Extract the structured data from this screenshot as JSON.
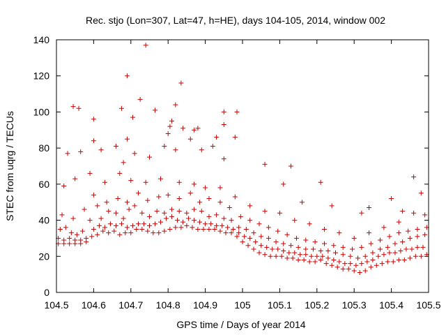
{
  "chart_data": {
    "type": "scatter",
    "title": "Rec. stjo (Lon=307, Lat=47, h=HE), days 104-105, 2014, window 002",
    "xlabel": "GPS time / Days of year 2014",
    "ylabel": "STEC from uqrg / TECUs",
    "xlim": [
      104.5,
      105.5
    ],
    "ylim": [
      0,
      140
    ],
    "xticks": [
      104.5,
      104.6,
      104.7,
      104.8,
      104.9,
      105,
      105.1,
      105.2,
      105.3,
      105.4,
      105.5
    ],
    "xtick_labels": [
      "104.5",
      "104.6",
      "104.7",
      "104.8",
      "104.9",
      "105",
      "105.1",
      "105.2",
      "105.3",
      "105.4",
      "105.5"
    ],
    "yticks": [
      0,
      20,
      40,
      60,
      80,
      100,
      120,
      140
    ],
    "ytick_labels": [
      "0",
      "20",
      "40",
      "60",
      "80",
      "100",
      "120",
      "140"
    ],
    "grid": false,
    "legend": "none",
    "marker": "plus",
    "color": "#cc0000",
    "series": [
      {
        "points": [
          [
            104.505,
            27
          ],
          [
            104.52,
            27
          ],
          [
            104.535,
            27
          ],
          [
            104.55,
            27
          ],
          [
            104.565,
            27
          ],
          [
            104.58,
            28
          ],
          [
            104.595,
            31
          ],
          [
            104.61,
            32
          ],
          [
            104.625,
            34
          ],
          [
            104.64,
            33
          ],
          [
            104.655,
            34
          ],
          [
            104.67,
            32
          ],
          [
            104.685,
            33
          ],
          [
            104.7,
            33
          ],
          [
            104.715,
            35
          ],
          [
            104.73,
            35
          ],
          [
            104.745,
            34
          ],
          [
            104.76,
            33
          ],
          [
            104.775,
            33
          ],
          [
            104.79,
            34
          ],
          [
            104.805,
            35
          ],
          [
            104.82,
            36
          ],
          [
            104.835,
            36
          ],
          [
            104.85,
            37
          ],
          [
            104.865,
            36
          ],
          [
            104.88,
            35
          ],
          [
            104.895,
            35
          ],
          [
            104.91,
            35
          ],
          [
            104.925,
            35
          ],
          [
            104.94,
            34
          ],
          [
            104.955,
            33
          ],
          [
            104.97,
            33
          ],
          [
            104.985,
            31
          ],
          [
            105.0,
            28
          ],
          [
            105.015,
            26
          ],
          [
            105.03,
            24
          ],
          [
            105.045,
            22
          ],
          [
            105.06,
            21
          ],
          [
            105.075,
            20
          ],
          [
            105.09,
            20
          ],
          [
            105.105,
            20
          ],
          [
            105.12,
            19
          ],
          [
            105.135,
            19
          ],
          [
            105.15,
            18
          ],
          [
            105.165,
            18
          ],
          [
            105.18,
            17
          ],
          [
            105.195,
            17
          ],
          [
            105.21,
            18
          ],
          [
            105.225,
            16
          ],
          [
            105.24,
            15
          ],
          [
            105.255,
            14
          ],
          [
            105.27,
            13
          ],
          [
            105.285,
            13
          ],
          [
            105.3,
            12
          ],
          [
            105.315,
            11
          ],
          [
            105.33,
            12
          ],
          [
            105.345,
            14
          ],
          [
            105.36,
            15
          ],
          [
            105.375,
            16
          ],
          [
            105.39,
            17
          ],
          [
            105.405,
            17
          ],
          [
            105.42,
            18
          ],
          [
            105.435,
            18
          ],
          [
            105.45,
            19
          ],
          [
            105.465,
            20
          ],
          [
            105.48,
            20
          ],
          [
            105.495,
            21
          ],
          [
            104.505,
            30
          ],
          [
            104.52,
            29
          ],
          [
            104.535,
            30
          ],
          [
            104.55,
            29
          ],
          [
            104.565,
            29
          ],
          [
            104.58,
            30
          ],
          [
            104.6,
            35
          ],
          [
            104.615,
            37
          ],
          [
            104.63,
            36
          ],
          [
            104.645,
            38
          ],
          [
            104.66,
            37
          ],
          [
            104.675,
            38
          ],
          [
            104.69,
            36
          ],
          [
            104.705,
            37
          ],
          [
            104.72,
            38
          ],
          [
            104.735,
            38
          ],
          [
            104.75,
            37
          ],
          [
            104.765,
            38
          ],
          [
            104.78,
            39
          ],
          [
            104.795,
            41
          ],
          [
            104.81,
            42
          ],
          [
            104.825,
            40
          ],
          [
            104.84,
            39
          ],
          [
            104.855,
            41
          ],
          [
            104.87,
            40
          ],
          [
            104.885,
            39
          ],
          [
            104.9,
            38
          ],
          [
            104.915,
            38
          ],
          [
            104.93,
            37
          ],
          [
            104.945,
            37
          ],
          [
            104.96,
            36
          ],
          [
            104.975,
            35
          ],
          [
            104.99,
            33
          ],
          [
            105.005,
            31
          ],
          [
            105.02,
            30
          ],
          [
            105.035,
            28
          ],
          [
            105.05,
            26
          ],
          [
            105.065,
            25
          ],
          [
            105.08,
            24
          ],
          [
            105.095,
            24
          ],
          [
            105.11,
            23
          ],
          [
            105.125,
            22
          ],
          [
            105.14,
            22
          ],
          [
            105.155,
            21
          ],
          [
            105.17,
            21
          ],
          [
            105.185,
            20
          ],
          [
            105.2,
            20
          ],
          [
            105.215,
            20
          ],
          [
            105.23,
            19
          ],
          [
            105.245,
            18
          ],
          [
            105.26,
            17
          ],
          [
            105.275,
            16
          ],
          [
            105.29,
            16
          ],
          [
            105.305,
            15
          ],
          [
            105.32,
            16
          ],
          [
            105.335,
            17
          ],
          [
            105.35,
            18
          ],
          [
            105.365,
            20
          ],
          [
            105.38,
            21
          ],
          [
            105.395,
            22
          ],
          [
            105.41,
            22
          ],
          [
            105.425,
            23
          ],
          [
            105.44,
            24
          ],
          [
            105.455,
            24
          ],
          [
            105.47,
            25
          ],
          [
            105.485,
            25
          ],
          [
            104.51,
            35
          ],
          [
            104.525,
            36
          ],
          [
            104.54,
            33
          ],
          [
            104.555,
            32
          ],
          [
            104.57,
            34
          ],
          [
            104.59,
            40
          ],
          [
            104.62,
            41
          ],
          [
            104.64,
            45
          ],
          [
            104.66,
            44
          ],
          [
            104.68,
            41
          ],
          [
            104.695,
            46
          ],
          [
            104.71,
            48
          ],
          [
            104.73,
            44
          ],
          [
            104.75,
            42
          ],
          [
            104.77,
            45
          ],
          [
            104.79,
            44
          ],
          [
            104.81,
            46
          ],
          [
            104.83,
            45
          ],
          [
            104.85,
            44
          ],
          [
            104.87,
            46
          ],
          [
            104.89,
            45
          ],
          [
            104.91,
            42
          ],
          [
            104.93,
            43
          ],
          [
            104.95,
            41
          ],
          [
            104.97,
            40
          ],
          [
            104.99,
            36
          ],
          [
            105.01,
            35
          ],
          [
            105.03,
            33
          ],
          [
            105.05,
            31
          ],
          [
            105.07,
            30
          ],
          [
            105.09,
            28
          ],
          [
            105.11,
            27
          ],
          [
            105.13,
            26
          ],
          [
            105.15,
            25
          ],
          [
            105.17,
            24
          ],
          [
            105.19,
            24
          ],
          [
            105.21,
            23
          ],
          [
            105.23,
            23
          ],
          [
            105.25,
            22
          ],
          [
            105.27,
            21
          ],
          [
            105.29,
            20
          ],
          [
            105.31,
            19
          ],
          [
            105.33,
            20
          ],
          [
            105.35,
            22
          ],
          [
            105.37,
            24
          ],
          [
            105.39,
            25
          ],
          [
            105.41,
            27
          ],
          [
            105.43,
            28
          ],
          [
            105.45,
            30
          ],
          [
            105.47,
            31
          ],
          [
            105.49,
            32
          ],
          [
            104.515,
            43
          ],
          [
            104.545,
            41
          ],
          [
            104.575,
            46
          ],
          [
            104.61,
            48
          ],
          [
            104.635,
            50
          ],
          [
            104.665,
            52
          ],
          [
            104.69,
            50
          ],
          [
            104.72,
            55
          ],
          [
            104.745,
            51
          ],
          [
            104.775,
            53
          ],
          [
            104.8,
            54
          ],
          [
            104.83,
            52
          ],
          [
            104.86,
            55
          ],
          [
            104.885,
            50
          ],
          [
            104.91,
            52
          ],
          [
            104.94,
            50
          ],
          [
            104.965,
            47
          ],
          [
            104.995,
            42
          ],
          [
            105.02,
            40
          ],
          [
            105.045,
            38
          ],
          [
            105.07,
            36
          ],
          [
            105.095,
            34
          ],
          [
            105.12,
            32
          ],
          [
            105.145,
            30
          ],
          [
            105.17,
            29
          ],
          [
            105.195,
            28
          ],
          [
            105.22,
            27
          ],
          [
            105.245,
            26
          ],
          [
            105.27,
            25
          ],
          [
            105.295,
            24
          ],
          [
            105.32,
            25
          ],
          [
            105.345,
            27
          ],
          [
            105.37,
            29
          ],
          [
            105.395,
            31
          ],
          [
            105.42,
            33
          ],
          [
            105.445,
            34
          ],
          [
            105.47,
            35
          ],
          [
            105.495,
            36
          ],
          [
            104.52,
            59
          ],
          [
            104.55,
            63
          ],
          [
            104.6,
            54
          ],
          [
            104.63,
            61
          ],
          [
            104.67,
            66
          ],
          [
            104.7,
            62
          ],
          [
            104.74,
            61
          ],
          [
            104.78,
            63
          ],
          [
            104.83,
            61
          ],
          [
            104.87,
            60
          ],
          [
            104.9,
            58
          ],
          [
            104.94,
            58
          ],
          [
            104.98,
            53
          ],
          [
            105.02,
            48
          ],
          [
            105.06,
            45
          ],
          [
            105.1,
            44
          ],
          [
            105.14,
            40
          ],
          [
            105.18,
            38
          ],
          [
            105.22,
            35
          ],
          [
            105.26,
            33
          ],
          [
            105.3,
            30
          ],
          [
            105.34,
            33
          ],
          [
            105.38,
            36
          ],
          [
            105.42,
            39
          ],
          [
            105.46,
            44
          ],
          [
            105.49,
            43
          ],
          [
            104.53,
            77
          ],
          [
            104.565,
            78
          ],
          [
            104.59,
            66
          ],
          [
            104.62,
            79
          ],
          [
            104.66,
            81
          ],
          [
            104.68,
            72
          ],
          [
            104.71,
            77
          ],
          [
            104.75,
            75
          ],
          [
            104.79,
            81
          ],
          [
            104.82,
            79
          ],
          [
            104.86,
            85
          ],
          [
            104.89,
            79
          ],
          [
            104.92,
            81
          ],
          [
            104.95,
            74
          ],
          [
            105.06,
            71
          ],
          [
            105.11,
            60
          ],
          [
            105.16,
            50
          ],
          [
            105.24,
            48
          ],
          [
            105.32,
            44
          ],
          [
            105.4,
            52
          ],
          [
            105.46,
            64
          ],
          [
            105.48,
            55
          ],
          [
            104.545,
            103
          ],
          [
            104.56,
            102
          ],
          [
            104.6,
            96
          ],
          [
            104.675,
            102
          ],
          [
            104.69,
            120
          ],
          [
            104.705,
            97
          ],
          [
            104.725,
            107
          ],
          [
            104.74,
            137
          ],
          [
            104.765,
            101
          ],
          [
            104.81,
            95
          ],
          [
            104.82,
            104
          ],
          [
            104.835,
            116
          ],
          [
            104.84,
            91
          ],
          [
            104.88,
            91
          ],
          [
            104.95,
            100
          ],
          [
            104.985,
            100
          ],
          [
            104.93,
            86
          ],
          [
            104.8,
            88
          ],
          [
            104.6,
            84
          ],
          [
            104.69,
            85
          ],
          [
            104.805,
            92
          ],
          [
            104.87,
            90
          ],
          [
            104.95,
            93
          ],
          [
            104.98,
            86
          ],
          [
            105.13,
            70
          ],
          [
            105.21,
            61
          ],
          [
            105.34,
            47
          ],
          [
            105.43,
            45
          ]
        ]
      }
    ]
  }
}
